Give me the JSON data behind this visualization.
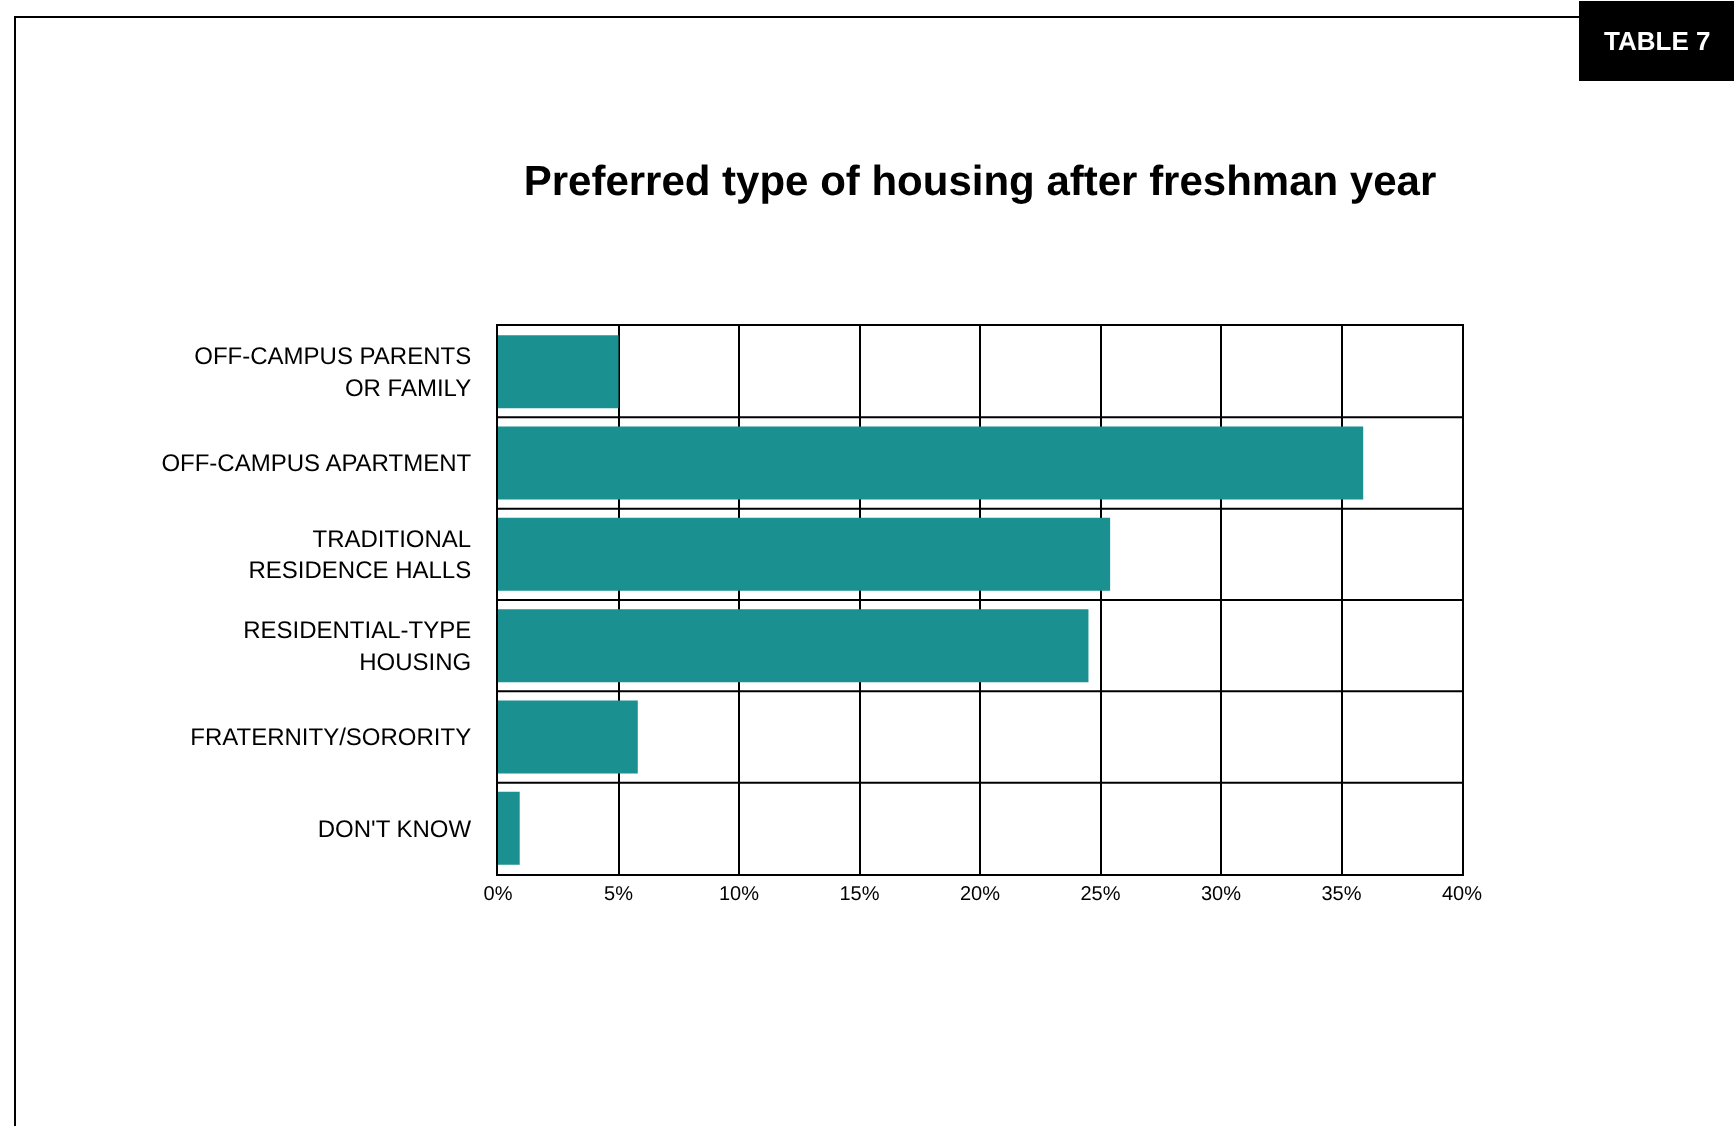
{
  "chart_data": {
    "type": "bar",
    "orientation": "horizontal",
    "title": "Preferred type of housing after freshman year",
    "annotations": [
      "TABLE 7"
    ],
    "categories": [
      "OFF-CAMPUS PARENTS OR FAMILY",
      "OFF-CAMPUS APARTMENT",
      "TRADITIONAL RESIDENCE HALLS",
      "RESIDENTIAL-TYPE HOUSING",
      "FRATERNITY/SORORITY",
      "DON'T KNOW"
    ],
    "values": [
      5.0,
      35.9,
      25.4,
      24.5,
      5.8,
      0.9
    ],
    "color": "#1a9090",
    "xlim": [
      0,
      40
    ],
    "xticks": [
      {
        "value": 0,
        "label": "0%"
      },
      {
        "value": 5,
        "label": "5%"
      },
      {
        "value": 10,
        "label": "10%"
      },
      {
        "value": 15,
        "label": "15%"
      },
      {
        "value": 20,
        "label": "20%"
      },
      {
        "value": 25,
        "label": "25%"
      },
      {
        "value": 30,
        "label": "30%"
      },
      {
        "value": 35,
        "label": "35%"
      },
      {
        "value": 40,
        "label": "40%"
      }
    ],
    "grid": true
  }
}
